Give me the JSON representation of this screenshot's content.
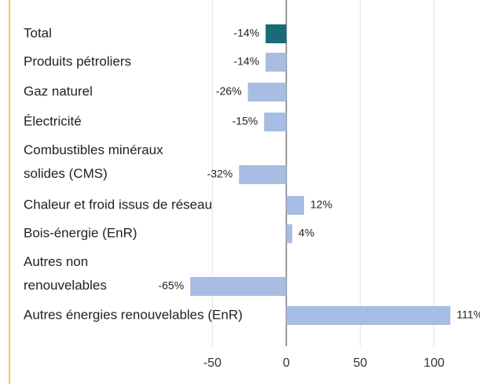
{
  "chart_data": {
    "type": "barh",
    "categories": [
      "Total",
      "Produits pétroliers",
      "Gaz naturel",
      "Électricité",
      "Combustibles minéraux\nsolides (CMS)",
      "Chaleur et froid issus de réseau",
      "Bois-énergie (EnR)",
      "Autres non\nrenouvelables",
      "Autres énergies renouvelables (EnR)"
    ],
    "values": [
      -14,
      -14,
      -26,
      -15,
      -32,
      12,
      4,
      -65,
      111
    ],
    "value_labels": [
      "-14%",
      "-14%",
      "-26%",
      "-15%",
      "-32%",
      "12%",
      "4%",
      "-65%",
      "111%"
    ],
    "colors": [
      "#1a6b7a",
      "#a7bde3",
      "#a7bde3",
      "#a7bde3",
      "#a7bde3",
      "#a7bde3",
      "#a7bde3",
      "#a7bde3",
      "#a7bde3"
    ],
    "xlim": [
      -190,
      130
    ],
    "xticks": [
      -50,
      0,
      50,
      100
    ],
    "grid": true
  }
}
